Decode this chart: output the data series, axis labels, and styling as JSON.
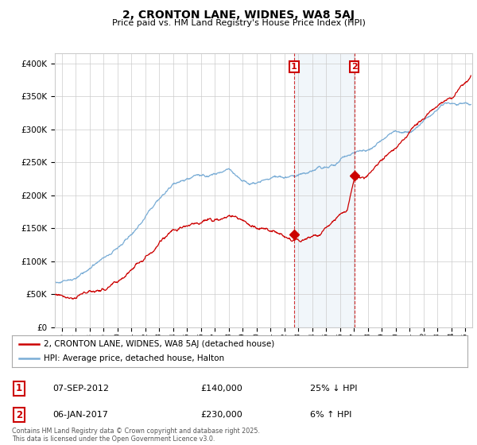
{
  "title": "2, CRONTON LANE, WIDNES, WA8 5AJ",
  "subtitle": "Price paid vs. HM Land Registry's House Price Index (HPI)",
  "ylabel_ticks": [
    "£0",
    "£50K",
    "£100K",
    "£150K",
    "£200K",
    "£250K",
    "£300K",
    "£350K",
    "£400K"
  ],
  "ytick_values": [
    0,
    50000,
    100000,
    150000,
    200000,
    250000,
    300000,
    350000,
    400000
  ],
  "ylim": [
    0,
    415000
  ],
  "xlim_start": 1995.5,
  "xlim_end": 2025.5,
  "hpi_color": "#7aadd6",
  "price_color": "#cc0000",
  "marker1_date": 2012.68,
  "marker1_price": 140000,
  "marker2_date": 2017.02,
  "marker2_price": 230000,
  "legend_house": "2, CRONTON LANE, WIDNES, WA8 5AJ (detached house)",
  "legend_hpi": "HPI: Average price, detached house, Halton",
  "annotation1_label": "1",
  "annotation1_date": "07-SEP-2012",
  "annotation1_price": "£140,000",
  "annotation1_hpi": "25% ↓ HPI",
  "annotation2_label": "2",
  "annotation2_date": "06-JAN-2017",
  "annotation2_price": "£230,000",
  "annotation2_hpi": "6% ↑ HPI",
  "footer": "Contains HM Land Registry data © Crown copyright and database right 2025.\nThis data is licensed under the Open Government Licence v3.0.",
  "background_color": "#ffffff",
  "grid_color": "#cccccc"
}
